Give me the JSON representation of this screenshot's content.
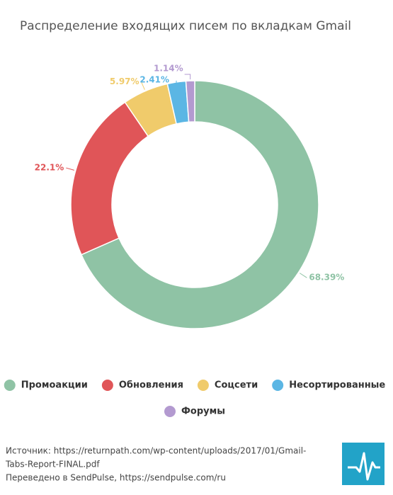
{
  "chart_data": {
    "type": "donut",
    "title": "Распределение входящих писем по вкладкам Gmail",
    "categories": [
      "Промоакции",
      "Обновления",
      "Соцсети",
      "Несортированные",
      "Форумы"
    ],
    "values": [
      68.39,
      22.1,
      5.97,
      2.41,
      1.14
    ],
    "value_labels": [
      "68.39%",
      "22.1%",
      "5.97%",
      "2.41%",
      "1.14%"
    ],
    "colors": [
      "#8fc3a5",
      "#e05558",
      "#f0cb6b",
      "#5bb6e4",
      "#b39ad0"
    ],
    "source": [
      "Источник: https://returnpath.com/wp-content/uploads/2017/01/Gmail-",
      "Tabs-Report-FINAL.pdf",
      "Переведено в SendPulse, https://sendpulse.com/ru"
    ]
  }
}
